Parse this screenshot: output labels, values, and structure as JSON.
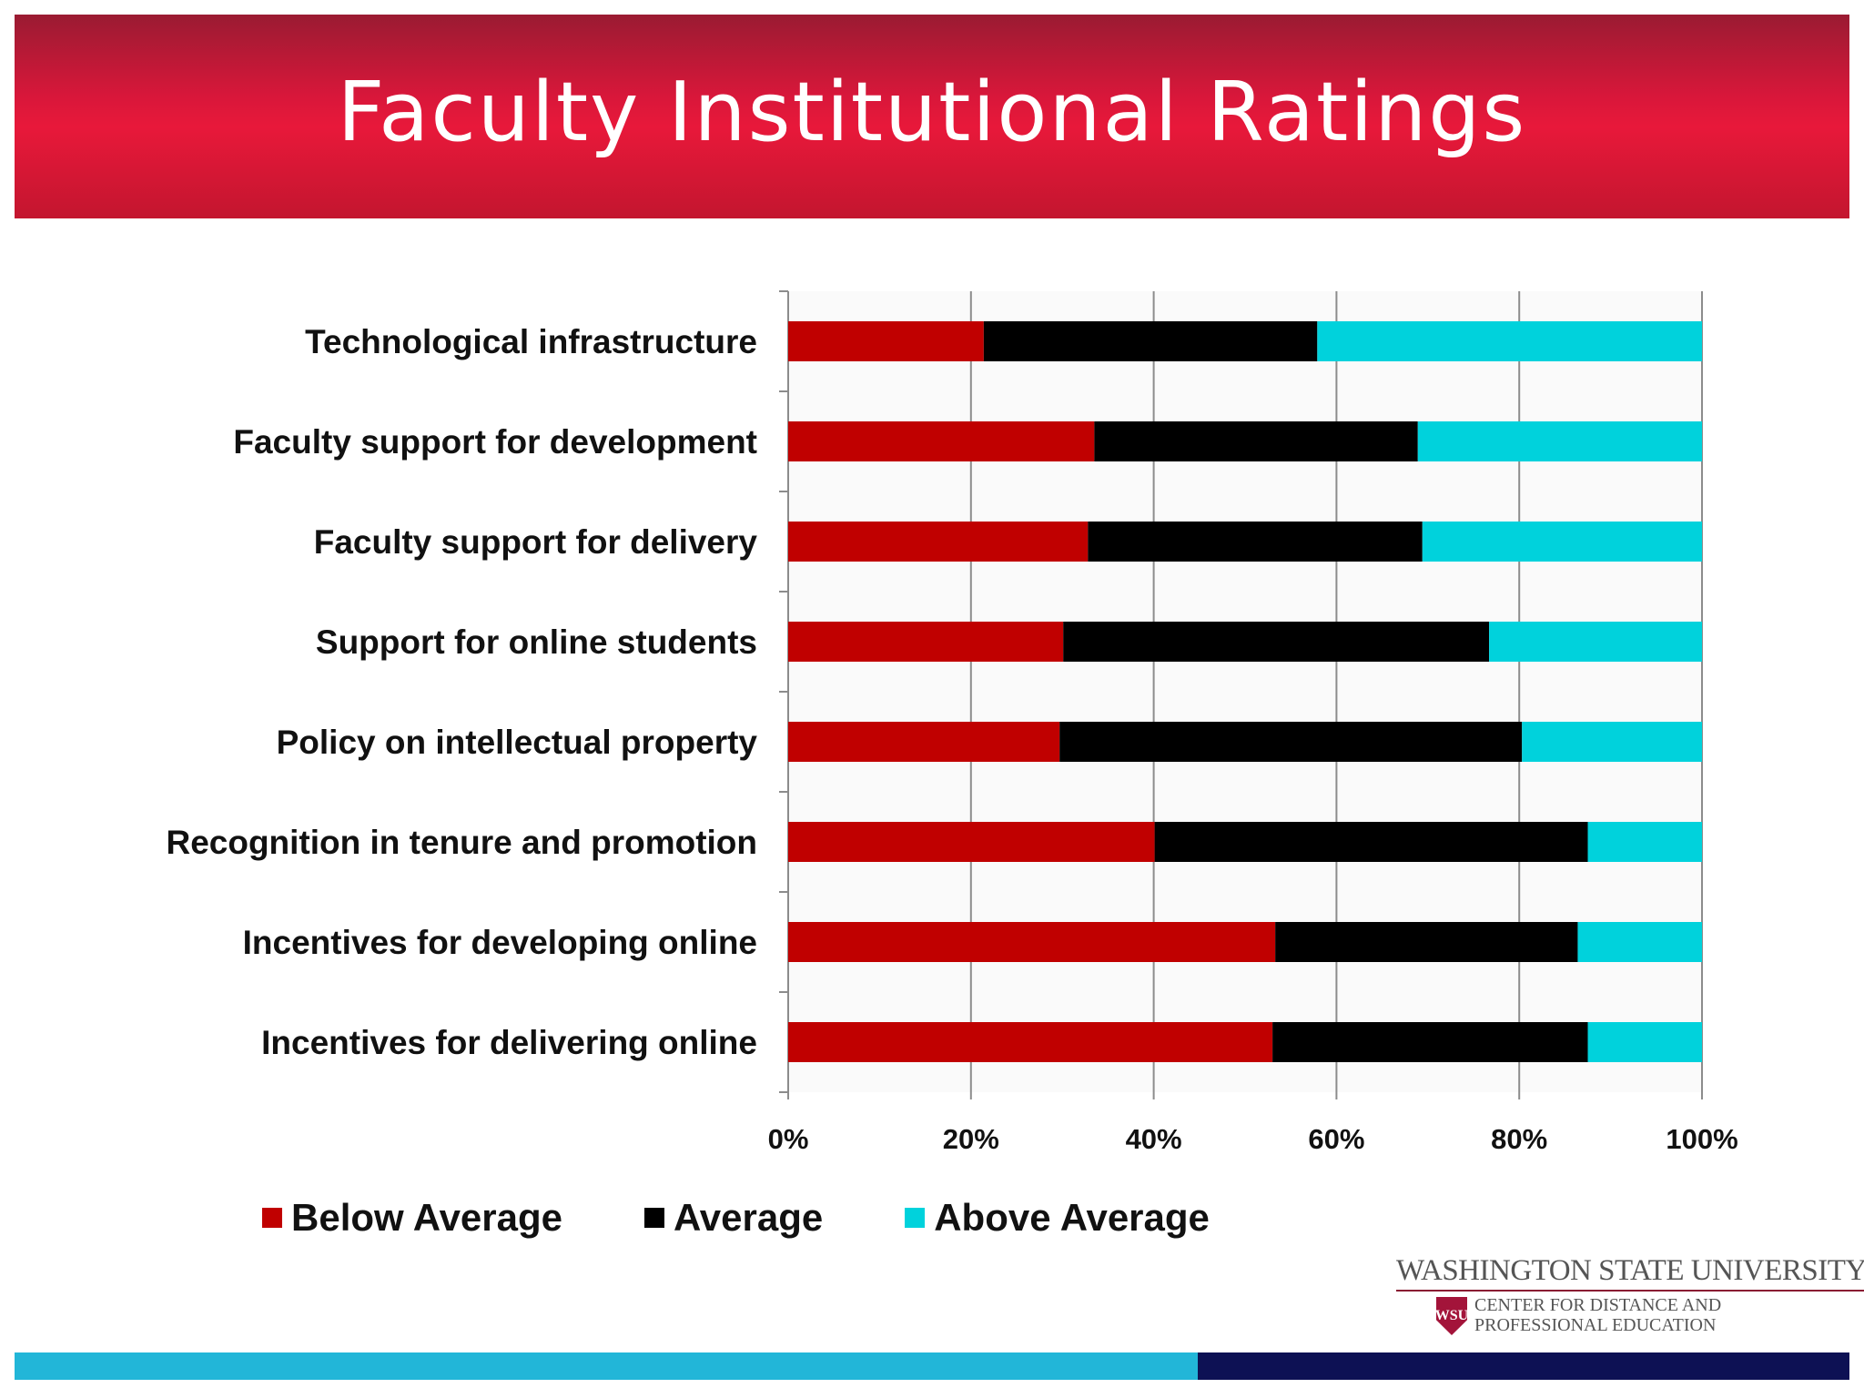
{
  "title": "Faculty Institutional Ratings",
  "colors": {
    "below": "#c00000",
    "average": "#000000",
    "above": "#00d2dc",
    "banner": "#e8183a",
    "bar_left": "#22b6d8",
    "bar_right": "#0d1154"
  },
  "chart_data": {
    "type": "bar",
    "orientation": "horizontal",
    "stacked": "percent",
    "categories": [
      "Technological infrastructure",
      "Faculty support for development",
      "Faculty support for delivery",
      "Support for online students",
      "Policy on intellectual property",
      "Recognition in tenure and promotion",
      "Incentives for developing online",
      "Incentives for delivering online"
    ],
    "series": [
      {
        "name": "Below Average",
        "values": [
          21.4,
          33.5,
          32.8,
          30.1,
          29.7,
          40.1,
          53.3,
          53.0
        ]
      },
      {
        "name": "Average",
        "values": [
          36.5,
          35.4,
          36.6,
          46.6,
          50.6,
          47.4,
          33.1,
          34.5
        ]
      },
      {
        "name": "Above Average",
        "values": [
          42.1,
          31.1,
          30.6,
          23.3,
          19.7,
          12.5,
          13.6,
          12.5
        ]
      }
    ],
    "xticks": [
      "0%",
      "20%",
      "40%",
      "60%",
      "80%",
      "100%"
    ],
    "xlim": [
      0,
      100
    ],
    "grid": true,
    "legend_position": "bottom"
  },
  "logo": {
    "line1": "WASHINGTON STATE UNIVERSITY",
    "line2": "CENTER FOR DISTANCE AND",
    "line3": "PROFESSIONAL EDUCATION",
    "mark": "WSU"
  }
}
